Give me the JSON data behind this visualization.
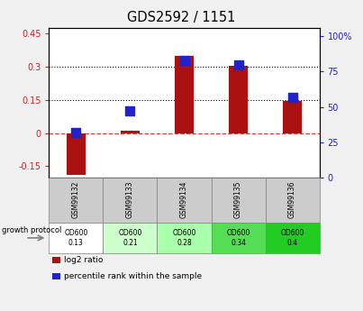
{
  "title": "GDS2592 / 1151",
  "samples": [
    "GSM99132",
    "GSM99133",
    "GSM99134",
    "GSM99135",
    "GSM99136"
  ],
  "log2_ratio": [
    -0.19,
    0.01,
    0.35,
    0.305,
    0.145
  ],
  "percentile_rank": [
    32,
    47,
    83,
    80,
    57
  ],
  "growth_protocol_labels": [
    "OD600\n0.13",
    "OD600\n0.21",
    "OD600\n0.28",
    "OD600\n0.34",
    "OD600\n0.4"
  ],
  "growth_protocol_colors": [
    "#ffffff",
    "#ccffcc",
    "#aaffaa",
    "#55dd55",
    "#22cc22"
  ],
  "bar_color": "#aa1111",
  "dot_color": "#2222cc",
  "left_ylim": [
    -0.2,
    0.475
  ],
  "right_ylim": [
    0,
    106
  ],
  "left_yticks": [
    -0.15,
    0,
    0.15,
    0.3,
    0.45
  ],
  "right_yticks": [
    0,
    25,
    50,
    75,
    100
  ],
  "dotted_lines": [
    0.15,
    0.3
  ],
  "plot_bg": "#ffffff",
  "fig_bg": "#f0f0f0"
}
